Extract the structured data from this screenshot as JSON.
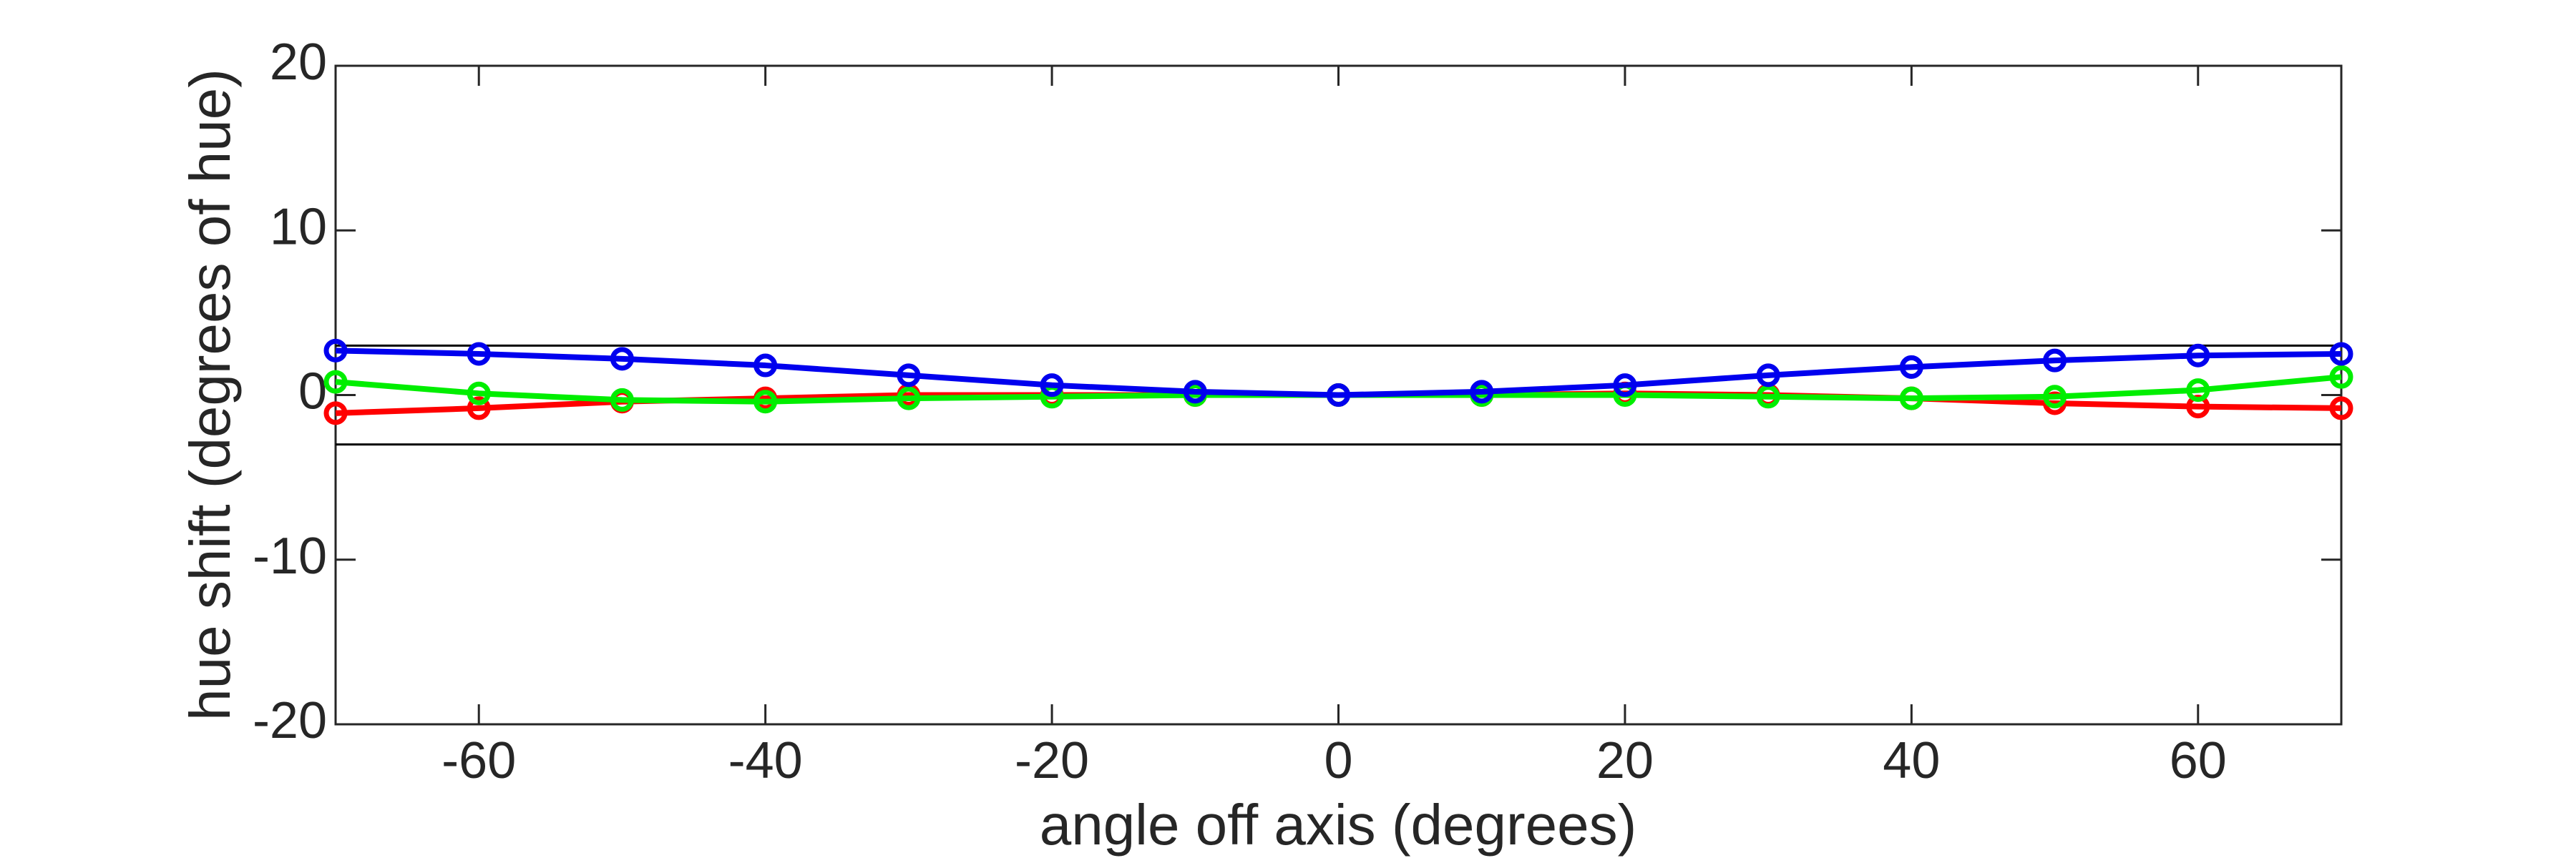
{
  "chart_data": {
    "type": "line",
    "xlabel": "angle off axis (degrees)",
    "ylabel": "hue shift (degrees of hue)",
    "x": [
      -70,
      -60,
      -50,
      -40,
      -30,
      -20,
      -10,
      0,
      10,
      20,
      30,
      40,
      50,
      60,
      70
    ],
    "series": [
      {
        "color": "#ff0000",
        "values": [
          -1.1,
          -0.8,
          -0.4,
          -0.2,
          0,
          0,
          0,
          0,
          0,
          0.1,
          0,
          -0.2,
          -0.5,
          -0.7,
          -0.8
        ]
      },
      {
        "color": "#00ee00",
        "values": [
          0.8,
          0.1,
          -0.3,
          -0.4,
          -0.2,
          -0.1,
          0,
          0,
          0,
          0,
          -0.1,
          -0.2,
          -0.1,
          0.3,
          1.1
        ]
      },
      {
        "color": "#0000ee",
        "values": [
          2.7,
          2.5,
          2.2,
          1.8,
          1.2,
          0.6,
          0.2,
          0,
          0.2,
          0.6,
          1.2,
          1.7,
          2.1,
          2.4,
          2.5
        ]
      }
    ],
    "hlines": [
      3,
      -3
    ],
    "xlim": [
      -70,
      70
    ],
    "xticks": [
      -60,
      -40,
      -20,
      0,
      20,
      40,
      60
    ],
    "ylim": [
      -20,
      20
    ],
    "yticks": [
      -20,
      -10,
      0,
      10,
      20
    ]
  }
}
